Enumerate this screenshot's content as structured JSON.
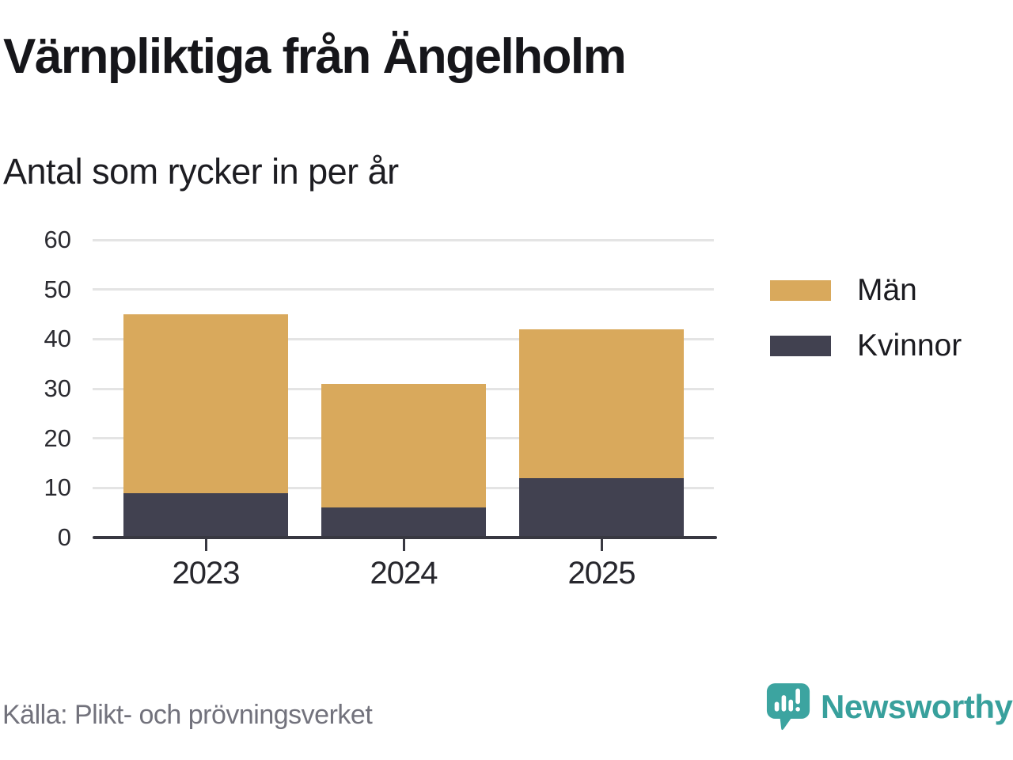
{
  "header": {
    "title": "Värnpliktiga från Ängelholm",
    "subtitle": "Antal som rycker in per år"
  },
  "chart_data": {
    "type": "bar",
    "stacked": true,
    "title": "Värnpliktiga från Ängelholm",
    "subtitle": "Antal som rycker in per år",
    "categories": [
      "2023",
      "2024",
      "2025"
    ],
    "series": [
      {
        "name": "Män",
        "values": [
          36,
          25,
          30
        ],
        "color": "#d9a95c"
      },
      {
        "name": "Kvinnor",
        "values": [
          9,
          6,
          12
        ],
        "color": "#414150"
      }
    ],
    "stack_totals": [
      45,
      31,
      42
    ],
    "ylim": [
      0,
      60
    ],
    "yticks": [
      0,
      10,
      20,
      30,
      40,
      50,
      60
    ],
    "grid": "horizontal",
    "legend_position": "right",
    "xlabel": "",
    "ylabel": ""
  },
  "footer": {
    "source": "Källa: Plikt- och prövningsverket",
    "brand": "Newsworthy"
  },
  "colors": {
    "men": "#d9a95c",
    "women": "#414150",
    "axis": "#383841",
    "gridline": "#e4e4e4",
    "teal": "#3ca4a0",
    "source_text": "#72727c"
  }
}
